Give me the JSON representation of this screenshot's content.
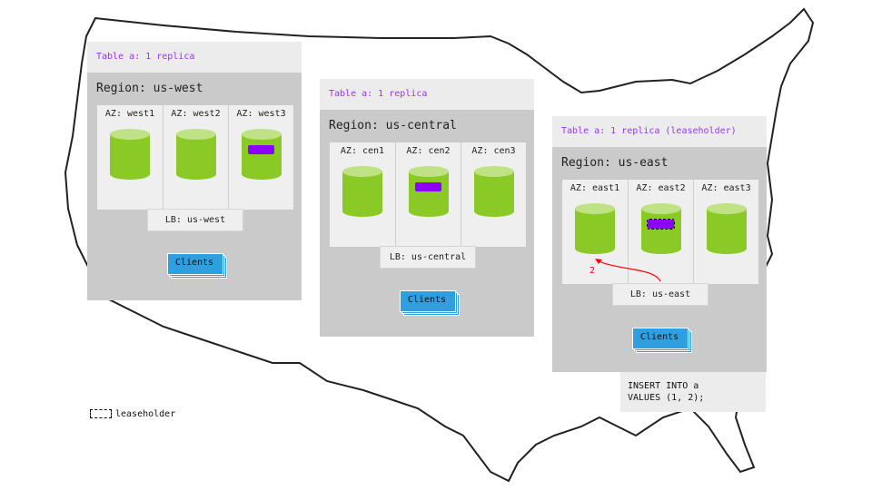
{
  "regions": [
    {
      "table_label": "Table a: 1 replica",
      "title": "Region: us-west",
      "azs": [
        "AZ: west1",
        "AZ: west2",
        "AZ: west3"
      ],
      "replica_az": 2,
      "leaseholder": false,
      "lb": "LB: us-west",
      "clients": "Clients"
    },
    {
      "table_label": "Table a: 1 replica",
      "title": "Region: us-central",
      "azs": [
        "AZ: cen1",
        "AZ: cen2",
        "AZ: cen3"
      ],
      "replica_az": 1,
      "leaseholder": false,
      "lb": "LB: us-central",
      "clients": "Clients"
    },
    {
      "table_label": "Table a: 1 replica (leaseholder)",
      "title": "Region: us-east",
      "azs": [
        "AZ: east1",
        "AZ: east2",
        "AZ: east3"
      ],
      "replica_az": 1,
      "leaseholder": true,
      "lb": "LB: us-east",
      "clients": "Clients"
    }
  ],
  "arrow_label": "2",
  "query": {
    "line1": "INSERT INTO a",
    "line2": "VALUES (1, 2);"
  },
  "legend": {
    "label": "leaseholder"
  },
  "colors": {
    "replica": "#8b00ff",
    "node": "#8ac926",
    "clients": "#2f9fdf",
    "arrow": "#ff0000",
    "table_label": "#9b30ff"
  }
}
